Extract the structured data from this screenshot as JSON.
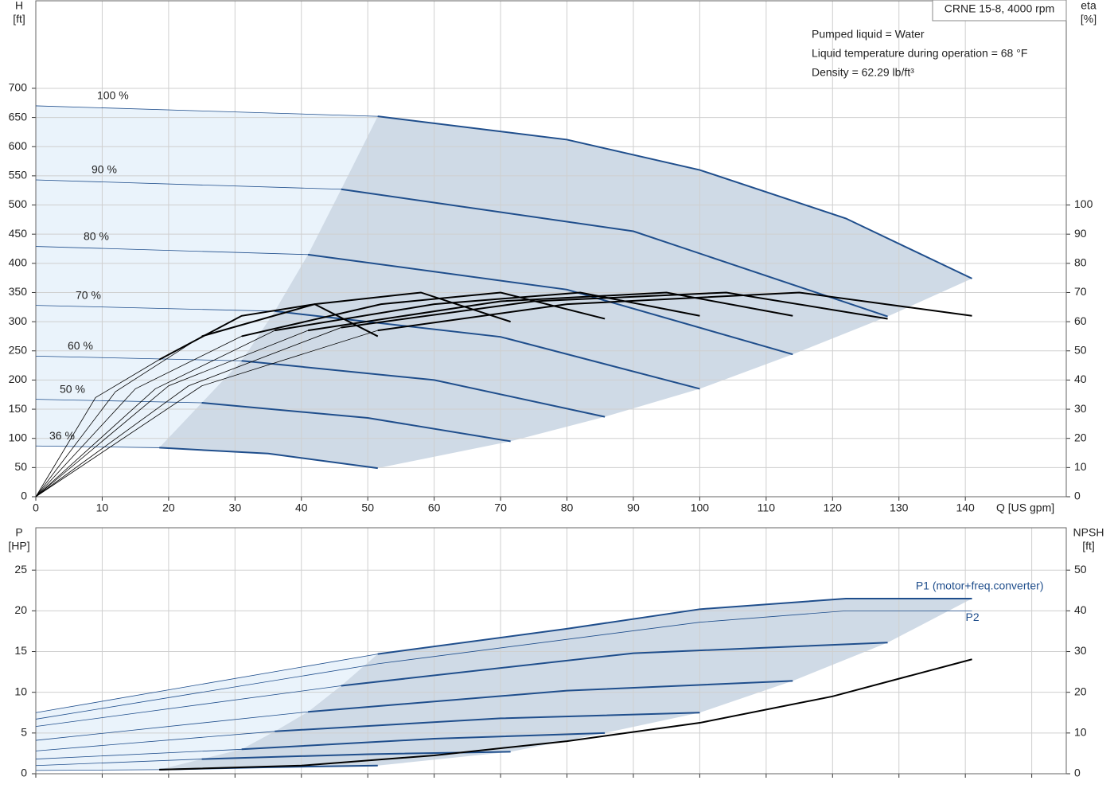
{
  "chart_data": [
    {
      "type": "line",
      "title": "CRNE 15-8, 4000 rpm",
      "notes": [
        "Pumped liquid = Water",
        "Liquid temperature during operation = 68 °F",
        "Density = 62.29 lb/ft³"
      ],
      "y_label": "H",
      "y_unit": "[ft]",
      "y2_label": "eta",
      "y2_unit": "[%]",
      "x_label": "Q [US gpm]",
      "xlim": [
        0,
        155.2
      ],
      "xticks": [
        0,
        10,
        20,
        30,
        40,
        50,
        60,
        70,
        80,
        90,
        100,
        110,
        120,
        130,
        140
      ],
      "ylim": [
        0,
        850
      ],
      "yticks": [
        0,
        50,
        100,
        150,
        200,
        250,
        300,
        350,
        400,
        450,
        500,
        550,
        600,
        650,
        700
      ],
      "y2lim": [
        0,
        170
      ],
      "y2ticks": [
        0,
        10,
        20,
        30,
        40,
        50,
        60,
        70,
        80,
        90,
        100
      ],
      "grid": true,
      "series": [
        {
          "name": "100 %",
          "color": "#1f4e8c",
          "axis": "y",
          "x": [
            0,
            51.5,
            80,
            100,
            122,
            141
          ],
          "values": [
            670,
            652,
            612,
            560,
            477,
            374
          ]
        },
        {
          "name": "90 %",
          "color": "#1f4e8c",
          "axis": "y",
          "x": [
            0,
            46,
            90,
            128.3
          ],
          "values": [
            543,
            527,
            455,
            309
          ]
        },
        {
          "name": "80 %",
          "color": "#1f4e8c",
          "axis": "y",
          "x": [
            0,
            41,
            80,
            114
          ],
          "values": [
            429,
            415,
            355,
            244
          ]
        },
        {
          "name": "70 %",
          "color": "#1f4e8c",
          "axis": "y",
          "x": [
            0,
            36,
            70,
            100
          ],
          "values": [
            328,
            318,
            274,
            185
          ]
        },
        {
          "name": "60 %",
          "color": "#1f4e8c",
          "axis": "y",
          "x": [
            0,
            31,
            60,
            85.7
          ],
          "values": [
            241,
            233,
            200,
            137
          ]
        },
        {
          "name": "50 %",
          "color": "#1f4e8c",
          "axis": "y",
          "x": [
            0,
            25,
            50,
            71.5
          ],
          "values": [
            167,
            161,
            135,
            95
          ]
        },
        {
          "name": "36 %",
          "color": "#1f4e8c",
          "axis": "y",
          "x": [
            0,
            18.6,
            35,
            51.5
          ],
          "values": [
            87,
            84,
            74,
            49
          ]
        },
        {
          "color": "#000000",
          "axis": "y2",
          "x": [
            0,
            25,
            51.5,
            80,
            115,
            141
          ],
          "values": [
            0,
            38,
            57,
            66,
            70,
            62
          ]
        },
        {
          "color": "#000000",
          "axis": "y2",
          "x": [
            0,
            23,
            46,
            75,
            104,
            128.3
          ],
          "values": [
            0,
            38,
            58,
            67,
            70,
            61
          ]
        },
        {
          "color": "#000000",
          "axis": "y2",
          "x": [
            0,
            20,
            41,
            70,
            95,
            114
          ],
          "values": [
            0,
            38,
            57,
            67,
            70,
            62
          ]
        },
        {
          "color": "#000000",
          "axis": "y2",
          "x": [
            0,
            18,
            36,
            60,
            82,
            100
          ],
          "values": [
            0,
            37,
            57,
            66,
            70,
            62
          ]
        },
        {
          "color": "#000000",
          "axis": "y2",
          "x": [
            0,
            15,
            31,
            52,
            70,
            85.7
          ],
          "values": [
            0,
            37,
            55,
            66,
            70,
            61
          ]
        },
        {
          "color": "#000000",
          "axis": "y2",
          "x": [
            0,
            12,
            25,
            42,
            58,
            71.5
          ],
          "values": [
            0,
            36,
            55,
            66,
            70,
            60
          ]
        },
        {
          "color": "#000000",
          "axis": "y2",
          "x": [
            0,
            9,
            18.6,
            31,
            42,
            51.5
          ],
          "values": [
            0,
            34,
            47,
            62,
            66,
            55
          ]
        }
      ]
    },
    {
      "type": "line",
      "y_label": "P",
      "y_unit": "[HP]",
      "y2_label": "NPSH",
      "y2_unit": "[ft]",
      "xlim": [
        0,
        155.2
      ],
      "xticks": [
        0,
        10,
        20,
        30,
        40,
        50,
        60,
        70,
        80,
        90,
        100,
        110,
        120,
        130,
        140,
        150
      ],
      "ylim": [
        0,
        30.2
      ],
      "yticks": [
        0,
        5,
        10,
        15,
        20,
        25
      ],
      "y2lim": [
        0,
        60.4
      ],
      "y2ticks": [
        0,
        10,
        20,
        30,
        40,
        50
      ],
      "grid": true,
      "series": [
        {
          "name": "P1 (motor+freq.converter)",
          "color": "#1f4e8c",
          "axis": "y",
          "x": [
            0,
            51.5,
            80,
            100,
            122,
            141
          ],
          "values": [
            7.5,
            14.7,
            17.8,
            20.2,
            21.5,
            21.5
          ]
        },
        {
          "color": "#1f4e8c",
          "axis": "y",
          "x": [
            0,
            46,
            90,
            128.3
          ],
          "values": [
            5.8,
            10.8,
            14.8,
            16.1
          ]
        },
        {
          "color": "#1f4e8c",
          "axis": "y",
          "x": [
            0,
            41,
            80,
            114
          ],
          "values": [
            4.1,
            7.6,
            10.2,
            11.4
          ]
        },
        {
          "color": "#1f4e8c",
          "axis": "y",
          "x": [
            0,
            36,
            70,
            100
          ],
          "values": [
            2.8,
            5.2,
            6.8,
            7.5
          ]
        },
        {
          "color": "#1f4e8c",
          "axis": "y",
          "x": [
            0,
            31,
            60,
            85.7
          ],
          "values": [
            1.8,
            3.0,
            4.3,
            5.0
          ]
        },
        {
          "color": "#1f4e8c",
          "axis": "y",
          "x": [
            0,
            25,
            50,
            71.5
          ],
          "values": [
            1.0,
            1.8,
            2.4,
            2.7
          ]
        },
        {
          "color": "#1f4e8c",
          "axis": "y",
          "x": [
            0,
            18.6,
            35,
            51.5
          ],
          "values": [
            0.4,
            0.5,
            0.8,
            1.0
          ]
        },
        {
          "name": "P2",
          "color": "#1f4e8c",
          "axis": "y",
          "linestyle": "thin",
          "x": [
            0,
            51.5,
            100,
            122,
            141
          ],
          "values": [
            6.7,
            13.5,
            18.6,
            20,
            20
          ]
        },
        {
          "color": "#000000",
          "axis": "y2",
          "x": [
            18.6,
            40,
            60,
            80,
            100,
            120,
            141
          ],
          "values": [
            1,
            2,
            4.5,
            8,
            12.5,
            19,
            28.1
          ]
        }
      ]
    }
  ]
}
